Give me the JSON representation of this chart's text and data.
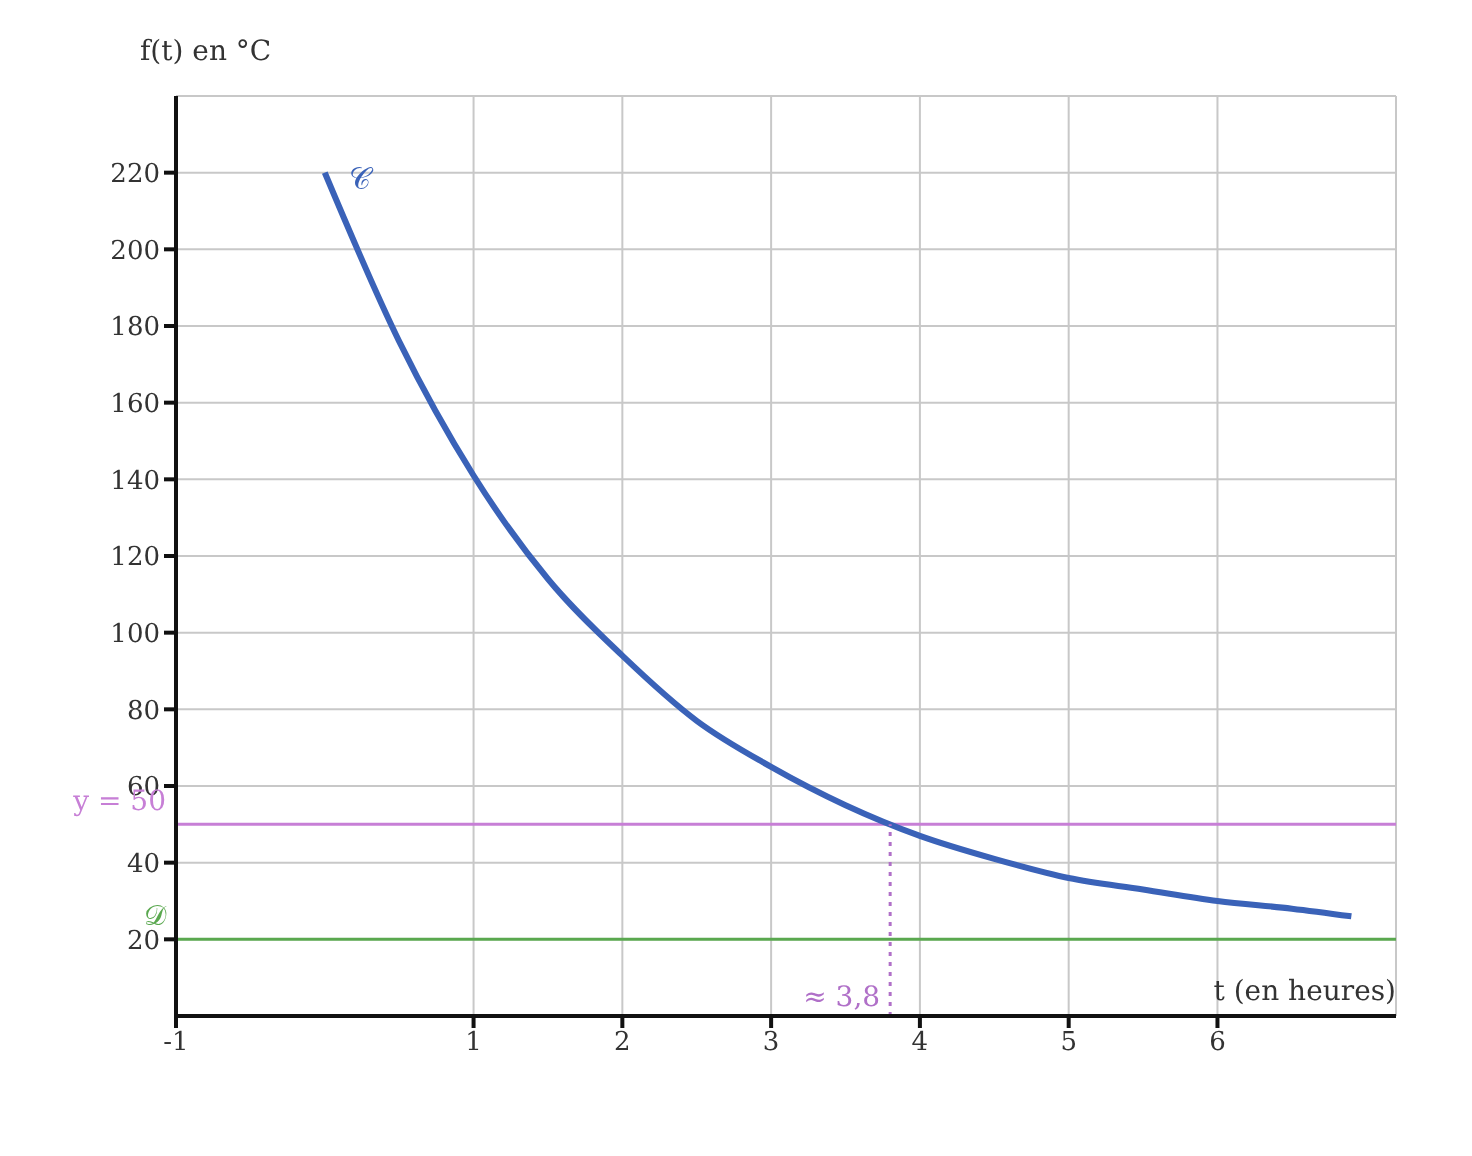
{
  "chart_data": {
    "type": "line",
    "xlabel": "t (en heures)",
    "ylabel": "f(t) en °C",
    "xlim": [
      -1,
      7.2
    ],
    "ylim": [
      0,
      240
    ],
    "xticks": [
      -1,
      1,
      2,
      3,
      4,
      5,
      6
    ],
    "yticks": [
      20,
      40,
      60,
      80,
      100,
      120,
      140,
      160,
      180,
      200,
      220
    ],
    "grid": true,
    "legend": false,
    "marker": "none",
    "series": [
      {
        "x": [
          0,
          0.5,
          1,
          1.5,
          2,
          2.5,
          3,
          3.5,
          4,
          4.5,
          5,
          5.5,
          6,
          6.5,
          6.9
        ],
        "values": [
          220,
          176,
          141,
          114,
          94,
          77,
          65,
          55,
          47,
          41,
          36,
          33,
          30,
          28,
          26
        ],
        "name": "𝒞",
        "color": "#3a62b8",
        "line_style": "solid"
      },
      {
        "x": [
          3.8,
          3.8
        ],
        "values": [
          0,
          50
        ],
        "color": "#b070c8",
        "line_style": "dotted"
      }
    ],
    "ref_lines": [
      {
        "axis": "y",
        "value": 50,
        "label": "y = 50",
        "color": "#c77fd6"
      },
      {
        "axis": "y",
        "value": 20,
        "label": "𝒟",
        "color": "#5aa84f"
      }
    ],
    "annotations": [
      {
        "text": "≈ 3,8",
        "x": 3.8,
        "y": 0
      }
    ]
  }
}
